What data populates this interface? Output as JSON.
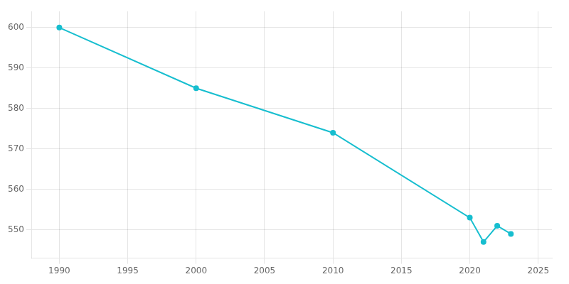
{
  "chart_data": {
    "type": "line",
    "x": [
      1990,
      2000,
      2010,
      2020,
      2021,
      2022,
      2023
    ],
    "values": [
      600,
      585,
      574,
      553,
      547,
      551,
      549
    ],
    "color": "#17BECF",
    "marker": "circle",
    "xlim": [
      1988,
      2026
    ],
    "xticks": [
      1990,
      1995,
      2000,
      2005,
      2010,
      2015,
      2020,
      2025
    ],
    "ylim": [
      543,
      604
    ],
    "yticks": [
      550,
      560,
      570,
      580,
      590,
      600
    ],
    "grid": true
  }
}
